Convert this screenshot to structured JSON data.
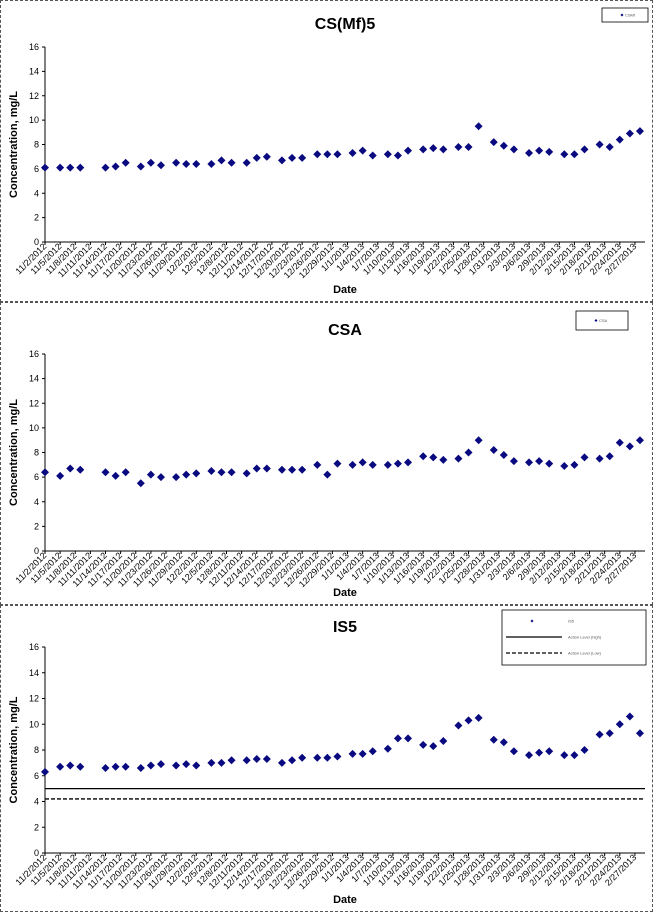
{
  "colors": {
    "marker": "#0a0a80",
    "axis": "#000000",
    "panel_border": "#555555"
  },
  "chart_data": [
    {
      "type": "scatter",
      "title": "CS(Mf)5",
      "xlabel": "Date",
      "ylabel": "Concentration, mg/L",
      "ylim": [
        0,
        16
      ],
      "yticks": [
        0,
        2,
        4,
        6,
        8,
        10,
        12,
        14,
        16
      ],
      "grid": false,
      "legend_position": "top-right",
      "series": [
        {
          "name": "CSMf",
          "marker": "diamond",
          "points": [
            [
              "11/2/2012",
              6.1
            ],
            [
              "11/5/2012",
              6.1
            ],
            [
              "11/7/2012",
              6.1
            ],
            [
              "11/9/2012",
              6.1
            ],
            [
              "11/14/2012",
              6.1
            ],
            [
              "11/16/2012",
              6.2
            ],
            [
              "11/18/2012",
              6.5
            ],
            [
              "11/21/2012",
              6.2
            ],
            [
              "11/23/2012",
              6.5
            ],
            [
              "11/25/2012",
              6.3
            ],
            [
              "11/28/2012",
              6.5
            ],
            [
              "11/30/2012",
              6.4
            ],
            [
              "12/2/2012",
              6.4
            ],
            [
              "12/5/2012",
              6.4
            ],
            [
              "12/7/2012",
              6.7
            ],
            [
              "12/9/2012",
              6.5
            ],
            [
              "12/12/2012",
              6.5
            ],
            [
              "12/14/2012",
              6.9
            ],
            [
              "12/16/2012",
              7.0
            ],
            [
              "12/19/2012",
              6.7
            ],
            [
              "12/21/2012",
              6.9
            ],
            [
              "12/23/2012",
              6.9
            ],
            [
              "12/26/2012",
              7.2
            ],
            [
              "12/28/2012",
              7.2
            ],
            [
              "12/30/2012",
              7.2
            ],
            [
              "1/2/2013",
              7.3
            ],
            [
              "1/4/2013",
              7.5
            ],
            [
              "1/6/2013",
              7.1
            ],
            [
              "1/9/2013",
              7.2
            ],
            [
              "1/11/2013",
              7.1
            ],
            [
              "1/13/2013",
              7.5
            ],
            [
              "1/16/2013",
              7.6
            ],
            [
              "1/18/2013",
              7.7
            ],
            [
              "1/20/2013",
              7.6
            ],
            [
              "1/23/2013",
              7.8
            ],
            [
              "1/25/2013",
              7.8
            ],
            [
              "1/27/2013",
              9.5
            ],
            [
              "1/30/2013",
              8.2
            ],
            [
              "2/1/2013",
              7.9
            ],
            [
              "2/3/2013",
              7.6
            ],
            [
              "2/6/2013",
              7.3
            ],
            [
              "2/8/2013",
              7.5
            ],
            [
              "2/10/2013",
              7.4
            ],
            [
              "2/13/2013",
              7.2
            ],
            [
              "2/15/2013",
              7.2
            ],
            [
              "2/17/2013",
              7.6
            ],
            [
              "2/20/2013",
              8.0
            ],
            [
              "2/22/2013",
              7.8
            ],
            [
              "2/24/2013",
              8.4
            ],
            [
              "2/26/2013",
              8.9
            ],
            [
              "2/28/2013",
              9.1
            ]
          ]
        }
      ]
    },
    {
      "type": "scatter",
      "title": "CSA",
      "xlabel": "Date",
      "ylabel": "Concentration, mg/L",
      "ylim": [
        0,
        16
      ],
      "yticks": [
        0,
        2,
        4,
        6,
        8,
        10,
        12,
        14,
        16
      ],
      "grid": false,
      "legend_position": "top-right",
      "series": [
        {
          "name": "CSA",
          "marker": "diamond",
          "points": [
            [
              "11/2/2012",
              6.4
            ],
            [
              "11/5/2012",
              6.1
            ],
            [
              "11/7/2012",
              6.7
            ],
            [
              "11/9/2012",
              6.6
            ],
            [
              "11/14/2012",
              6.4
            ],
            [
              "11/16/2012",
              6.1
            ],
            [
              "11/18/2012",
              6.4
            ],
            [
              "11/21/2012",
              5.5
            ],
            [
              "11/23/2012",
              6.2
            ],
            [
              "11/25/2012",
              6.0
            ],
            [
              "11/28/2012",
              6.0
            ],
            [
              "11/30/2012",
              6.2
            ],
            [
              "12/2/2012",
              6.3
            ],
            [
              "12/5/2012",
              6.5
            ],
            [
              "12/7/2012",
              6.4
            ],
            [
              "12/9/2012",
              6.4
            ],
            [
              "12/12/2012",
              6.3
            ],
            [
              "12/14/2012",
              6.7
            ],
            [
              "12/16/2012",
              6.7
            ],
            [
              "12/19/2012",
              6.6
            ],
            [
              "12/21/2012",
              6.6
            ],
            [
              "12/23/2012",
              6.6
            ],
            [
              "12/26/2012",
              7.0
            ],
            [
              "12/28/2012",
              6.2
            ],
            [
              "12/30/2012",
              7.1
            ],
            [
              "1/2/2013",
              7.0
            ],
            [
              "1/4/2013",
              7.2
            ],
            [
              "1/6/2013",
              7.0
            ],
            [
              "1/9/2013",
              7.0
            ],
            [
              "1/11/2013",
              7.1
            ],
            [
              "1/13/2013",
              7.2
            ],
            [
              "1/16/2013",
              7.7
            ],
            [
              "1/18/2013",
              7.6
            ],
            [
              "1/20/2013",
              7.4
            ],
            [
              "1/23/2013",
              7.5
            ],
            [
              "1/25/2013",
              8.0
            ],
            [
              "1/27/2013",
              9.0
            ],
            [
              "1/30/2013",
              8.2
            ],
            [
              "2/1/2013",
              7.8
            ],
            [
              "2/3/2013",
              7.3
            ],
            [
              "2/6/2013",
              7.2
            ],
            [
              "2/8/2013",
              7.3
            ],
            [
              "2/10/2013",
              7.1
            ],
            [
              "2/13/2013",
              6.9
            ],
            [
              "2/15/2013",
              7.0
            ],
            [
              "2/17/2013",
              7.6
            ],
            [
              "2/20/2013",
              7.5
            ],
            [
              "2/22/2013",
              7.7
            ],
            [
              "2/24/2013",
              8.8
            ],
            [
              "2/26/2013",
              8.5
            ],
            [
              "2/28/2013",
              9.0
            ]
          ]
        }
      ]
    },
    {
      "type": "scatter",
      "title": "IS5",
      "xlabel": "Date",
      "ylabel": "Concentration, mg/L",
      "ylim": [
        0,
        16
      ],
      "yticks": [
        0,
        2,
        4,
        6,
        8,
        10,
        12,
        14,
        16
      ],
      "grid": false,
      "legend_position": "top-right",
      "hlines": [
        {
          "name": "Action Level (high)",
          "y": 5.0,
          "style": "solid"
        },
        {
          "name": "Action Level (Low)",
          "y": 4.2,
          "style": "dashed"
        }
      ],
      "series": [
        {
          "name": "IS5",
          "marker": "diamond",
          "points": [
            [
              "11/2/2012",
              6.3
            ],
            [
              "11/5/2012",
              6.7
            ],
            [
              "11/7/2012",
              6.8
            ],
            [
              "11/9/2012",
              6.7
            ],
            [
              "11/14/2012",
              6.6
            ],
            [
              "11/16/2012",
              6.7
            ],
            [
              "11/18/2012",
              6.7
            ],
            [
              "11/21/2012",
              6.6
            ],
            [
              "11/23/2012",
              6.8
            ],
            [
              "11/25/2012",
              6.9
            ],
            [
              "11/28/2012",
              6.8
            ],
            [
              "11/30/2012",
              6.9
            ],
            [
              "12/2/2012",
              6.8
            ],
            [
              "12/5/2012",
              7.0
            ],
            [
              "12/7/2012",
              7.0
            ],
            [
              "12/9/2012",
              7.2
            ],
            [
              "12/12/2012",
              7.2
            ],
            [
              "12/14/2012",
              7.3
            ],
            [
              "12/16/2012",
              7.3
            ],
            [
              "12/19/2012",
              7.0
            ],
            [
              "12/21/2012",
              7.2
            ],
            [
              "12/23/2012",
              7.4
            ],
            [
              "12/26/2012",
              7.4
            ],
            [
              "12/28/2012",
              7.4
            ],
            [
              "12/30/2012",
              7.5
            ],
            [
              "1/2/2013",
              7.7
            ],
            [
              "1/4/2013",
              7.7
            ],
            [
              "1/6/2013",
              7.9
            ],
            [
              "1/9/2013",
              8.1
            ],
            [
              "1/11/2013",
              8.9
            ],
            [
              "1/13/2013",
              8.9
            ],
            [
              "1/16/2013",
              8.4
            ],
            [
              "1/18/2013",
              8.3
            ],
            [
              "1/20/2013",
              8.7
            ],
            [
              "1/23/2013",
              9.9
            ],
            [
              "1/25/2013",
              10.3
            ],
            [
              "1/27/2013",
              10.5
            ],
            [
              "1/30/2013",
              8.8
            ],
            [
              "2/1/2013",
              8.6
            ],
            [
              "2/3/2013",
              7.9
            ],
            [
              "2/6/2013",
              7.6
            ],
            [
              "2/8/2013",
              7.8
            ],
            [
              "2/10/2013",
              7.9
            ],
            [
              "2/13/2013",
              7.6
            ],
            [
              "2/15/2013",
              7.6
            ],
            [
              "2/17/2013",
              8.0
            ],
            [
              "2/20/2013",
              9.2
            ],
            [
              "2/22/2013",
              9.3
            ],
            [
              "2/24/2013",
              10.0
            ],
            [
              "2/26/2013",
              10.6
            ],
            [
              "2/28/2013",
              9.3
            ]
          ]
        }
      ]
    }
  ],
  "xticks": [
    "11/2/2012",
    "11/5/2012",
    "11/8/2012",
    "11/11/2012",
    "11/14/2012",
    "11/17/2012",
    "11/20/2012",
    "11/23/2012",
    "11/26/2012",
    "11/29/2012",
    "12/2/2012",
    "12/5/2012",
    "12/8/2012",
    "12/11/2012",
    "12/14/2012",
    "12/17/2012",
    "12/20/2012",
    "12/23/2012",
    "12/26/2012",
    "12/29/2012",
    "1/1/2013",
    "1/4/2013",
    "1/7/2013",
    "1/10/2013",
    "1/13/2013",
    "1/16/2013",
    "1/19/2013",
    "1/22/2013",
    "1/25/2013",
    "1/28/2013",
    "1/31/2013",
    "2/3/2013",
    "2/6/2013",
    "2/9/2013",
    "2/12/2013",
    "2/15/2013",
    "2/18/2013",
    "2/21/2013",
    "2/24/2013",
    "2/27/2013"
  ]
}
